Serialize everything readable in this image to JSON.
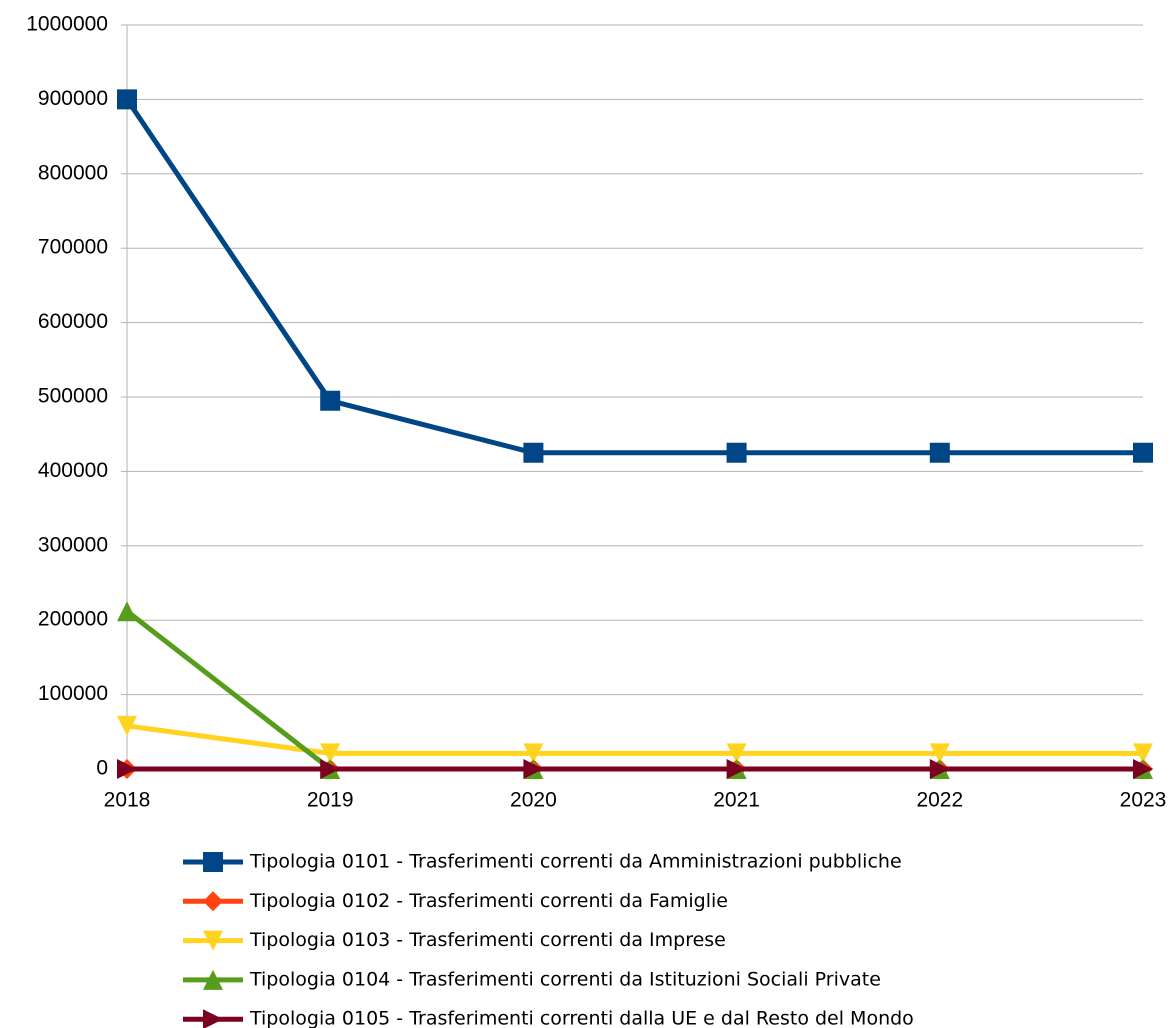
{
  "chart_data": {
    "type": "line",
    "categories": [
      "2018",
      "2019",
      "2020",
      "2021",
      "2022",
      "2023"
    ],
    "series": [
      {
        "name": "Tipologia 0101 - Trasferimenti correnti da Amministrazioni pubbliche",
        "color": "#004586",
        "marker": "square",
        "values": [
          900000,
          495000,
          425000,
          425000,
          425000,
          425000
        ]
      },
      {
        "name": "Tipologia 0102 - Trasferimenti correnti da Famiglie",
        "color": "#ff420e",
        "marker": "diamond",
        "values": [
          0,
          0,
          0,
          0,
          0,
          0
        ]
      },
      {
        "name": "Tipologia 0103 - Trasferimenti correnti da Imprese",
        "color": "#ffd320",
        "marker": "triangle-down",
        "values": [
          58000,
          21000,
          21000,
          21000,
          21000,
          21000
        ]
      },
      {
        "name": "Tipologia 0104 - Trasferimenti correnti da Istituzioni Sociali Private",
        "color": "#579d1c",
        "marker": "triangle-up",
        "values": [
          212000,
          0,
          0,
          0,
          0,
          0
        ]
      },
      {
        "name": "Tipologia 0105 - Trasferimenti correnti dalla UE e dal Resto del Mondo",
        "color": "#7e0021",
        "marker": "triangle-right",
        "values": [
          0,
          0,
          0,
          0,
          0,
          0
        ]
      }
    ],
    "ylim": [
      0,
      1000000
    ],
    "yticks": [
      0,
      100000,
      200000,
      300000,
      400000,
      500000,
      600000,
      700000,
      800000,
      900000,
      1000000
    ],
    "grid": true
  }
}
